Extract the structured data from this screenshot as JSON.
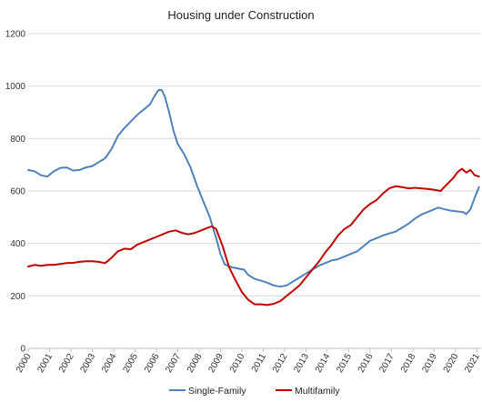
{
  "chart_data": {
    "type": "line",
    "title": "Housing under Construction",
    "xlabel": "",
    "ylabel": "",
    "xlim": [
      2000,
      2021.2
    ],
    "ylim": [
      0,
      1200
    ],
    "y_ticks": [
      "0",
      "200",
      "400",
      "600",
      "800",
      "1000",
      "1200"
    ],
    "x_ticks": [
      "2000",
      "2001",
      "2002",
      "2003",
      "2004",
      "2005",
      "2006",
      "2007",
      "2008",
      "2009",
      "2010",
      "2011",
      "2012",
      "2013",
      "2014",
      "2015",
      "2016",
      "2017",
      "2018",
      "2019",
      "2020",
      "2021"
    ],
    "grid": "horizontal",
    "legend": "bottom",
    "series": [
      {
        "name": "Single-Family",
        "color": "#4f81bd",
        "points": [
          [
            2000.0,
            680
          ],
          [
            2000.3,
            675
          ],
          [
            2000.6,
            660
          ],
          [
            2000.9,
            655
          ],
          [
            2001.2,
            675
          ],
          [
            2001.5,
            688
          ],
          [
            2001.8,
            690
          ],
          [
            2002.1,
            678
          ],
          [
            2002.4,
            680
          ],
          [
            2002.7,
            690
          ],
          [
            2003.0,
            695
          ],
          [
            2003.3,
            710
          ],
          [
            2003.6,
            725
          ],
          [
            2003.9,
            760
          ],
          [
            2004.2,
            810
          ],
          [
            2004.5,
            840
          ],
          [
            2004.8,
            865
          ],
          [
            2005.1,
            890
          ],
          [
            2005.4,
            910
          ],
          [
            2005.7,
            930
          ],
          [
            2005.9,
            960
          ],
          [
            2006.1,
            985
          ],
          [
            2006.25,
            985
          ],
          [
            2006.4,
            960
          ],
          [
            2006.6,
            900
          ],
          [
            2006.8,
            830
          ],
          [
            2007.0,
            780
          ],
          [
            2007.3,
            740
          ],
          [
            2007.6,
            690
          ],
          [
            2007.9,
            620
          ],
          [
            2008.2,
            560
          ],
          [
            2008.5,
            500
          ],
          [
            2008.8,
            420
          ],
          [
            2009.0,
            360
          ],
          [
            2009.2,
            320
          ],
          [
            2009.5,
            310
          ],
          [
            2009.8,
            305
          ],
          [
            2010.1,
            300
          ],
          [
            2010.3,
            280
          ],
          [
            2010.6,
            265
          ],
          [
            2010.9,
            258
          ],
          [
            2011.2,
            250
          ],
          [
            2011.5,
            240
          ],
          [
            2011.8,
            235
          ],
          [
            2012.1,
            240
          ],
          [
            2012.4,
            255
          ],
          [
            2012.7,
            270
          ],
          [
            2013.0,
            285
          ],
          [
            2013.3,
            300
          ],
          [
            2013.6,
            315
          ],
          [
            2013.9,
            325
          ],
          [
            2014.2,
            335
          ],
          [
            2014.5,
            340
          ],
          [
            2014.8,
            350
          ],
          [
            2015.1,
            360
          ],
          [
            2015.4,
            370
          ],
          [
            2015.7,
            390
          ],
          [
            2016.0,
            410
          ],
          [
            2016.3,
            420
          ],
          [
            2016.6,
            430
          ],
          [
            2016.9,
            438
          ],
          [
            2017.2,
            445
          ],
          [
            2017.5,
            460
          ],
          [
            2017.8,
            475
          ],
          [
            2018.1,
            495
          ],
          [
            2018.4,
            510
          ],
          [
            2018.7,
            520
          ],
          [
            2019.0,
            530
          ],
          [
            2019.2,
            537
          ],
          [
            2019.5,
            530
          ],
          [
            2019.8,
            525
          ],
          [
            2020.1,
            522
          ],
          [
            2020.35,
            520
          ],
          [
            2020.5,
            512
          ],
          [
            2020.7,
            530
          ],
          [
            2020.9,
            575
          ],
          [
            2021.1,
            615
          ]
        ]
      },
      {
        "name": "Multifamily",
        "color": "#c00000",
        "points": [
          [
            2000.0,
            312
          ],
          [
            2000.3,
            318
          ],
          [
            2000.6,
            315
          ],
          [
            2000.9,
            318
          ],
          [
            2001.2,
            318
          ],
          [
            2001.5,
            322
          ],
          [
            2001.8,
            325
          ],
          [
            2002.1,
            326
          ],
          [
            2002.4,
            330
          ],
          [
            2002.7,
            332
          ],
          [
            2003.0,
            332
          ],
          [
            2003.3,
            330
          ],
          [
            2003.6,
            325
          ],
          [
            2003.9,
            345
          ],
          [
            2004.2,
            370
          ],
          [
            2004.5,
            380
          ],
          [
            2004.8,
            378
          ],
          [
            2005.1,
            395
          ],
          [
            2005.4,
            405
          ],
          [
            2005.7,
            415
          ],
          [
            2006.0,
            425
          ],
          [
            2006.3,
            435
          ],
          [
            2006.6,
            445
          ],
          [
            2006.9,
            450
          ],
          [
            2007.2,
            440
          ],
          [
            2007.5,
            435
          ],
          [
            2007.8,
            440
          ],
          [
            2008.1,
            450
          ],
          [
            2008.4,
            460
          ],
          [
            2008.6,
            465
          ],
          [
            2008.8,
            455
          ],
          [
            2009.1,
            390
          ],
          [
            2009.4,
            310
          ],
          [
            2009.7,
            260
          ],
          [
            2010.0,
            215
          ],
          [
            2010.3,
            185
          ],
          [
            2010.6,
            168
          ],
          [
            2010.9,
            168
          ],
          [
            2011.2,
            165
          ],
          [
            2011.5,
            170
          ],
          [
            2011.8,
            180
          ],
          [
            2012.1,
            200
          ],
          [
            2012.4,
            220
          ],
          [
            2012.7,
            240
          ],
          [
            2013.0,
            270
          ],
          [
            2013.3,
            300
          ],
          [
            2013.6,
            330
          ],
          [
            2013.9,
            365
          ],
          [
            2014.2,
            395
          ],
          [
            2014.5,
            430
          ],
          [
            2014.8,
            455
          ],
          [
            2015.1,
            470
          ],
          [
            2015.4,
            500
          ],
          [
            2015.7,
            530
          ],
          [
            2016.0,
            550
          ],
          [
            2016.3,
            565
          ],
          [
            2016.6,
            590
          ],
          [
            2016.9,
            610
          ],
          [
            2017.2,
            618
          ],
          [
            2017.5,
            615
          ],
          [
            2017.8,
            610
          ],
          [
            2018.1,
            612
          ],
          [
            2018.4,
            610
          ],
          [
            2018.7,
            608
          ],
          [
            2019.0,
            605
          ],
          [
            2019.3,
            600
          ],
          [
            2019.6,
            625
          ],
          [
            2019.9,
            650
          ],
          [
            2020.1,
            672
          ],
          [
            2020.3,
            685
          ],
          [
            2020.5,
            670
          ],
          [
            2020.7,
            680
          ],
          [
            2020.9,
            660
          ],
          [
            2021.1,
            655
          ]
        ]
      }
    ]
  }
}
